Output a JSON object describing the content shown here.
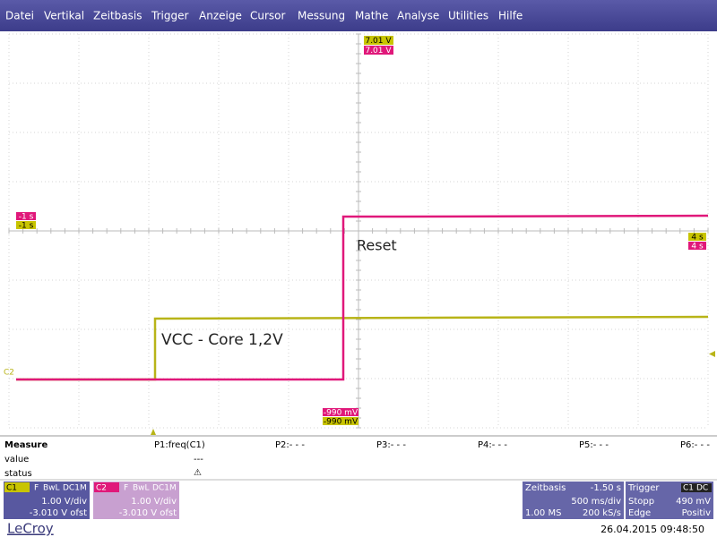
{
  "menu": [
    "Datei",
    "Vertikal",
    "Zeitbasis",
    "Trigger",
    "Anzeige",
    "Cursor",
    "Messung",
    "Mathe",
    "Analyse",
    "Utilities",
    "Hilfe"
  ],
  "markers": {
    "c1_level": "7.01 V",
    "c2_level": "7.01 V",
    "c2_delay": "-1 s",
    "c1_delay": "-1 s",
    "c1_right": "4 s",
    "c2_right": "4 s",
    "c2_bottom": "-990 mV",
    "c1_bottom": "-990 mV",
    "c2_ground": "C2"
  },
  "annotations": {
    "reset": "Reset",
    "vcc": "VCC - Core 1,2V"
  },
  "measure": {
    "title": "Measure",
    "row_labels": [
      "value",
      "status"
    ],
    "params": [
      "P1:freq(C1)",
      "P2:- - -",
      "P3:- - -",
      "P4:- - -",
      "P5:- - -",
      "P6:- - -"
    ],
    "p1_value": "---",
    "p1_status": "⚠"
  },
  "channels": [
    {
      "name": "C1",
      "flags": [
        "F",
        "BwL",
        "DC1M"
      ],
      "scale": "1.00 V/div",
      "offset": "-3.010 V ofst"
    },
    {
      "name": "C2",
      "flags": [
        "F",
        "BwL",
        "DC1M"
      ],
      "scale": "1.00 V/div",
      "offset": "-3.010 V ofst"
    }
  ],
  "timebase": {
    "title": "Zeitbasis",
    "delay": "-1.50 s",
    "scale": "500 ms/div",
    "samples": "1.00 MS",
    "rate": "200 kS/s"
  },
  "trigger": {
    "title": "Trigger",
    "source": "C1",
    "coupling": "DC",
    "mode": "Stopp",
    "level": "490 mV",
    "type": "Edge",
    "slope": "Positiv"
  },
  "footer": {
    "brand": "LeCroy",
    "datetime": "26.04.2015 09:48:50"
  }
}
